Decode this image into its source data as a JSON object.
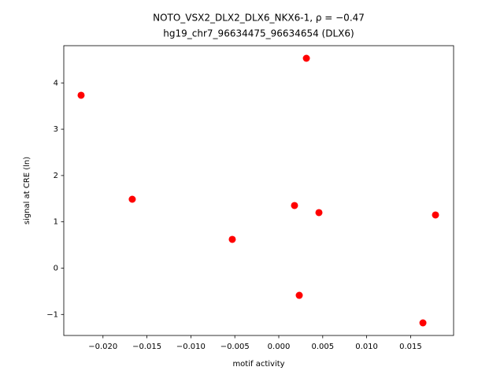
{
  "chart_data": {
    "type": "scatter",
    "title": [
      "NOTO_VSX2_DLX2_DLX6_NKX6-1, ρ = −0.47",
      "hg19_chr7_96634475_96634654 (DLX6)"
    ],
    "x_label": "motif activity",
    "y_label": "signal at CRE (ln)",
    "color": "#ff0000",
    "x": [
      -0.02249,
      -0.01667,
      -0.00529,
      0.00179,
      0.00233,
      0.00314,
      0.00457,
      0.0164,
      0.01783
    ],
    "y": [
      3.733,
      1.488,
      0.621,
      1.352,
      -0.587,
      4.532,
      1.199,
      -1.182,
      1.148
    ],
    "xlim": [
      -0.02446,
      0.01989
    ],
    "ylim": [
      -1.454,
      4.804
    ],
    "xticks": [
      {
        "value": -0.02,
        "label": "−0.020"
      },
      {
        "value": -0.015,
        "label": "−0.015"
      },
      {
        "value": -0.01,
        "label": "−0.010"
      },
      {
        "value": -0.005,
        "label": "−0.005"
      },
      {
        "value": 0,
        "label": "0.000"
      },
      0.005,
      {
        "value": 0.01,
        "label": "0.010"
      },
      0.015
    ],
    "yticks": [
      {
        "value": -1,
        "label": "−1"
      },
      0,
      1,
      2,
      3,
      4
    ],
    "grid": false
  }
}
